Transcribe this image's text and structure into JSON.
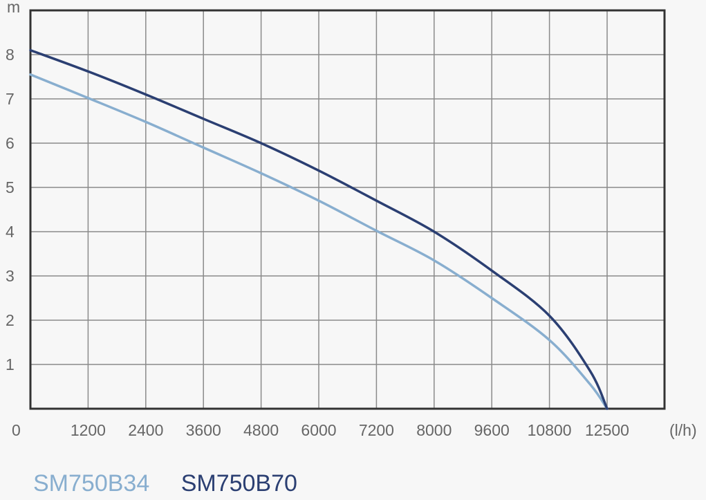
{
  "chart_data": {
    "type": "line",
    "ylabel": "m",
    "xlabel": "(l/h)",
    "x_origin_label": "0",
    "x_ticks": [
      "1200",
      "2400",
      "3600",
      "4800",
      "6000",
      "7200",
      "8000",
      "9600",
      "10800",
      "12500"
    ],
    "y_ticks": [
      "1",
      "2",
      "3",
      "4",
      "5",
      "6",
      "7",
      "8"
    ],
    "ylim": [
      0,
      9
    ],
    "grid": true,
    "legend_position": "bottom-left",
    "series": [
      {
        "name": "SM750B34",
        "color": "#88aecf",
        "points": [
          [
            0,
            7.55
          ],
          [
            1200,
            7.02
          ],
          [
            2400,
            6.48
          ],
          [
            3600,
            5.9
          ],
          [
            4800,
            5.32
          ],
          [
            6000,
            4.7
          ],
          [
            7200,
            4.02
          ],
          [
            8000,
            3.35
          ],
          [
            9600,
            2.5
          ],
          [
            10800,
            1.55
          ],
          [
            12000,
            0.55
          ],
          [
            12500,
            0
          ]
        ]
      },
      {
        "name": "SM750B70",
        "color": "#2b3f72",
        "points": [
          [
            0,
            8.1
          ],
          [
            1200,
            7.62
          ],
          [
            2400,
            7.1
          ],
          [
            3600,
            6.55
          ],
          [
            4800,
            6.0
          ],
          [
            6000,
            5.38
          ],
          [
            7200,
            4.7
          ],
          [
            8000,
            4.0
          ],
          [
            9600,
            3.12
          ],
          [
            10800,
            2.1
          ],
          [
            12000,
            0.85
          ],
          [
            12500,
            0
          ]
        ]
      }
    ]
  }
}
